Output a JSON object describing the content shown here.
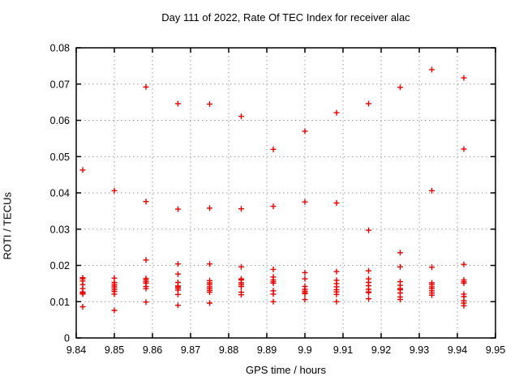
{
  "chart_data": {
    "type": "scatter",
    "title": "Day 111 of 2022, Rate Of TEC Index for receiver alac",
    "xlabel": "GPS time / hours",
    "ylabel": "ROTI / TECUs",
    "xlim": [
      9.84,
      9.95
    ],
    "ylim": [
      0,
      0.08
    ],
    "grid": true,
    "grid_style": "dotted-gray",
    "legend": "none",
    "marker": "plus",
    "marker_color": "#e60000",
    "frame_color": "#000000",
    "grid_color": "#9a9a9a",
    "background_color": "#ffffff",
    "xticks": [
      {
        "v": 9.84,
        "label": "9.84"
      },
      {
        "v": 9.85,
        "label": "9.85"
      },
      {
        "v": 9.86,
        "label": "9.86"
      },
      {
        "v": 9.87,
        "label": "9.87"
      },
      {
        "v": 9.88,
        "label": "9.88"
      },
      {
        "v": 9.89,
        "label": "9.89"
      },
      {
        "v": 9.9,
        "label": "9.9"
      },
      {
        "v": 9.91,
        "label": "9.91"
      },
      {
        "v": 9.92,
        "label": "9.92"
      },
      {
        "v": 9.93,
        "label": "9.93"
      },
      {
        "v": 9.94,
        "label": "9.94"
      },
      {
        "v": 9.95,
        "label": "9.95"
      }
    ],
    "yticks": [
      {
        "v": 0,
        "label": "0"
      },
      {
        "v": 0.01,
        "label": "0.01"
      },
      {
        "v": 0.02,
        "label": "0.02"
      },
      {
        "v": 0.03,
        "label": "0.03"
      },
      {
        "v": 0.04,
        "label": "0.04"
      },
      {
        "v": 0.05,
        "label": "0.05"
      },
      {
        "v": 0.06,
        "label": "0.06"
      },
      {
        "v": 0.07,
        "label": "0.07"
      },
      {
        "v": 0.08,
        "label": "0.08"
      }
    ],
    "series": [
      {
        "name": "roti",
        "color": "#e60000",
        "columns": [
          {
            "x": 9.8417,
            "y": [
              0.0463,
              0.0166,
              0.0163,
              0.0157,
              0.0147,
              0.0136,
              0.0127,
              0.0124,
              0.0121,
              0.0086
            ]
          },
          {
            "x": 9.85,
            "y": [
              0.0406,
              0.0165,
              0.0153,
              0.0148,
              0.0143,
              0.0138,
              0.0133,
              0.0128,
              0.0121,
              0.0076
            ]
          },
          {
            "x": 9.8583,
            "y": [
              0.0692,
              0.0376,
              0.0215,
              0.0164,
              0.016,
              0.0155,
              0.0151,
              0.0142,
              0.0136,
              0.0099
            ]
          },
          {
            "x": 9.8667,
            "y": [
              0.0646,
              0.0355,
              0.0204,
              0.0176,
              0.0153,
              0.0143,
              0.0141,
              0.0137,
              0.0132,
              0.012,
              0.009
            ]
          },
          {
            "x": 9.875,
            "y": [
              0.0645,
              0.0358,
              0.0204,
              0.0158,
              0.0152,
              0.0147,
              0.0141,
              0.0136,
              0.0131,
              0.0126,
              0.0096
            ]
          },
          {
            "x": 9.8833,
            "y": [
              0.0611,
              0.0356,
              0.0196,
              0.0163,
              0.016,
              0.0152,
              0.0147,
              0.0142,
              0.0126,
              0.0119
            ]
          },
          {
            "x": 9.8917,
            "y": [
              0.052,
              0.0363,
              0.0189,
              0.0168,
              0.016,
              0.0155,
              0.0151,
              0.013,
              0.0121,
              0.01
            ]
          },
          {
            "x": 9.9,
            "y": [
              0.057,
              0.0375,
              0.018,
              0.0163,
              0.0142,
              0.0134,
              0.0129,
              0.0125,
              0.0122,
              0.0106
            ]
          },
          {
            "x": 9.9083,
            "y": [
              0.0621,
              0.0372,
              0.0183,
              0.0159,
              0.015,
              0.0141,
              0.0133,
              0.0127,
              0.012,
              0.01
            ]
          },
          {
            "x": 9.9167,
            "y": [
              0.0646,
              0.0297,
              0.0185,
              0.0163,
              0.0153,
              0.0144,
              0.0134,
              0.0127,
              0.0125,
              0.0108
            ]
          },
          {
            "x": 9.925,
            "y": [
              0.0691,
              0.0235,
              0.0196,
              0.0155,
              0.0145,
              0.0136,
              0.0133,
              0.0124,
              0.0113,
              0.0106
            ]
          },
          {
            "x": 9.9333,
            "y": [
              0.074,
              0.0406,
              0.0195,
              0.0152,
              0.0147,
              0.0141,
              0.0136,
              0.013,
              0.0124,
              0.0118
            ]
          },
          {
            "x": 9.9417,
            "y": [
              0.0717,
              0.0521,
              0.0203,
              0.016,
              0.0155,
              0.0151,
              0.0121,
              0.0114,
              0.0103,
              0.0096,
              0.0089
            ]
          }
        ]
      }
    ]
  }
}
